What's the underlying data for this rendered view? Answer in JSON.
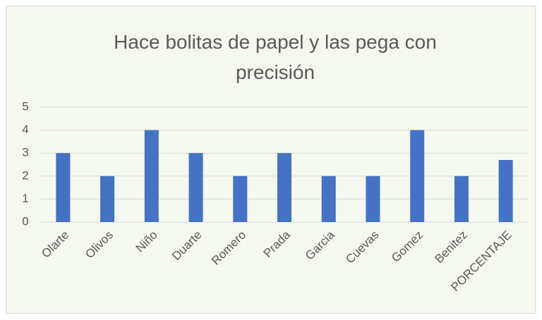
{
  "chart_data": {
    "type": "bar",
    "title": "Hace bolitas de papel y las pega con precisión",
    "categories": [
      "Olarte",
      "Olivos",
      "Niño",
      "Duarte",
      "Romero",
      "Prada",
      "Garcia",
      "Cuevas",
      "Gomez",
      "Benitez",
      "PORCENTAJE"
    ],
    "values": [
      3,
      2,
      4,
      3,
      2,
      3,
      2,
      2,
      4,
      2,
      2.7
    ],
    "color": "#4472c4",
    "ylim": [
      0,
      5
    ],
    "yticks": [
      0,
      1,
      2,
      3,
      4,
      5
    ],
    "grid": true
  }
}
